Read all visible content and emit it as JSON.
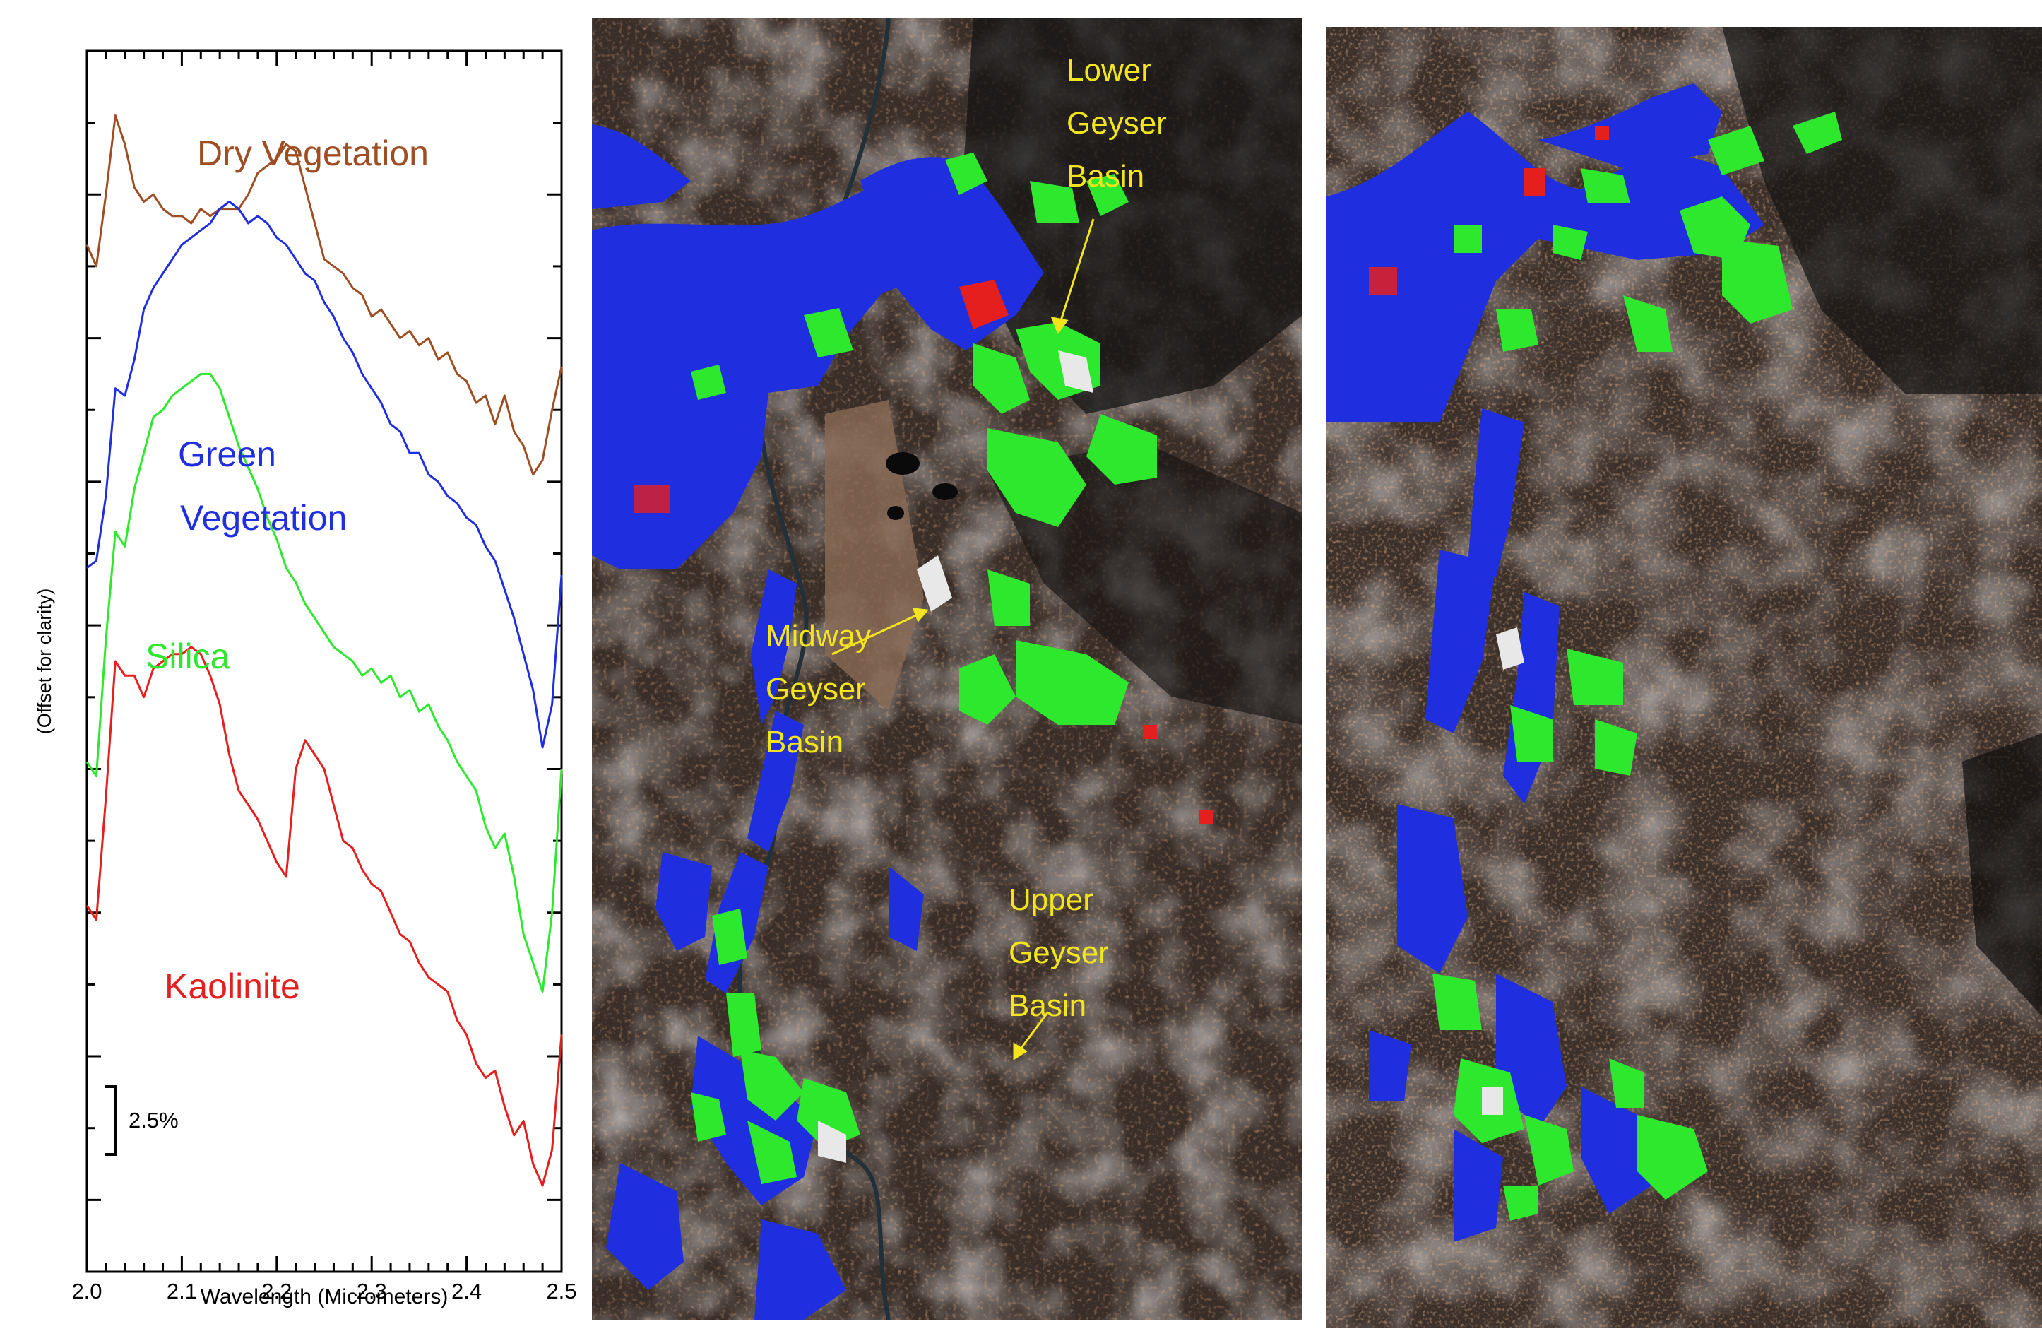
{
  "chart_data": {
    "type": "line",
    "xlabel": "Wavelength (Micrometers)",
    "ylabel": "(Offset for clarity)",
    "xlim": [
      2.0,
      2.5
    ],
    "xticks": [
      "2.0",
      "2.1",
      "2.2",
      "2.3",
      "2.4",
      "2.5"
    ],
    "scale_bar": "2.5%",
    "series": [
      {
        "name": "Dry Vegetation",
        "color": "#9e4e22",
        "x": [
          2.0,
          2.01,
          2.02,
          2.03,
          2.04,
          2.05,
          2.06,
          2.07,
          2.08,
          2.09,
          2.1,
          2.11,
          2.12,
          2.13,
          2.14,
          2.15,
          2.16,
          2.17,
          2.18,
          2.19,
          2.2,
          2.21,
          2.22,
          2.23,
          2.24,
          2.25,
          2.26,
          2.27,
          2.28,
          2.29,
          2.3,
          2.31,
          2.32,
          2.33,
          2.34,
          2.35,
          2.36,
          2.37,
          2.38,
          2.39,
          2.4,
          2.41,
          2.42,
          2.43,
          2.44,
          2.45,
          2.46,
          2.47,
          2.48,
          2.49,
          2.5
        ],
        "y": [
          4.8,
          4.5,
          5.5,
          6.6,
          6.2,
          5.6,
          5.4,
          5.5,
          5.3,
          5.2,
          5.2,
          5.1,
          5.3,
          5.2,
          5.3,
          5.3,
          5.3,
          5.5,
          5.8,
          5.9,
          6.0,
          6.2,
          6.1,
          5.6,
          5.1,
          4.6,
          4.5,
          4.4,
          4.2,
          4.1,
          3.8,
          3.9,
          3.7,
          3.5,
          3.6,
          3.4,
          3.5,
          3.2,
          3.3,
          3.0,
          2.9,
          2.6,
          2.7,
          2.3,
          2.7,
          2.2,
          2.0,
          1.6,
          1.8,
          2.5,
          3.1
        ]
      },
      {
        "name": "Green Vegetation",
        "color": "#1f2fe0",
        "x": [
          2.0,
          2.01,
          2.02,
          2.03,
          2.04,
          2.05,
          2.06,
          2.07,
          2.08,
          2.09,
          2.1,
          2.11,
          2.12,
          2.13,
          2.14,
          2.15,
          2.16,
          2.17,
          2.18,
          2.19,
          2.2,
          2.21,
          2.22,
          2.23,
          2.24,
          2.25,
          2.26,
          2.27,
          2.28,
          2.29,
          2.3,
          2.31,
          2.32,
          2.33,
          2.34,
          2.35,
          2.36,
          2.37,
          2.38,
          2.39,
          2.4,
          2.41,
          2.42,
          2.43,
          2.44,
          2.45,
          2.46,
          2.47,
          2.48,
          2.49,
          2.5
        ],
        "y": [
          0.3,
          0.4,
          1.3,
          2.8,
          2.7,
          3.2,
          3.9,
          4.2,
          4.4,
          4.6,
          4.8,
          4.9,
          5.0,
          5.1,
          5.3,
          5.4,
          5.3,
          5.1,
          5.2,
          5.1,
          4.9,
          4.8,
          4.6,
          4.4,
          4.3,
          4.0,
          3.8,
          3.5,
          3.3,
          3.0,
          2.8,
          2.6,
          2.3,
          2.2,
          1.9,
          1.9,
          1.6,
          1.5,
          1.3,
          1.2,
          1.0,
          0.9,
          0.6,
          0.4,
          0.0,
          -0.4,
          -0.9,
          -1.4,
          -2.2,
          -1.6,
          0.2
        ]
      },
      {
        "name": "Silica",
        "color": "#2ee82e",
        "x": [
          2.0,
          2.01,
          2.02,
          2.03,
          2.04,
          2.05,
          2.06,
          2.07,
          2.08,
          2.09,
          2.1,
          2.11,
          2.12,
          2.13,
          2.14,
          2.15,
          2.16,
          2.17,
          2.18,
          2.19,
          2.2,
          2.21,
          2.22,
          2.23,
          2.24,
          2.25,
          2.26,
          2.27,
          2.28,
          2.29,
          2.3,
          2.31,
          2.32,
          2.33,
          2.34,
          2.35,
          2.36,
          2.37,
          2.38,
          2.39,
          2.4,
          2.41,
          2.42,
          2.43,
          2.44,
          2.45,
          2.46,
          2.47,
          2.48,
          2.49,
          2.5
        ],
        "y": [
          -2.4,
          -2.6,
          -0.7,
          0.8,
          0.6,
          1.4,
          1.9,
          2.4,
          2.5,
          2.7,
          2.8,
          2.9,
          3.0,
          3.0,
          2.8,
          2.4,
          2.0,
          1.7,
          1.4,
          1.0,
          0.7,
          0.3,
          0.1,
          -0.2,
          -0.4,
          -0.6,
          -0.8,
          -0.9,
          -1.0,
          -1.2,
          -1.1,
          -1.3,
          -1.2,
          -1.5,
          -1.4,
          -1.7,
          -1.6,
          -1.9,
          -2.1,
          -2.4,
          -2.6,
          -2.8,
          -3.3,
          -3.6,
          -3.4,
          -4.0,
          -4.8,
          -5.2,
          -5.6,
          -4.5,
          -2.5
        ]
      },
      {
        "name": "Kaolinite",
        "color": "#e51e1e",
        "x": [
          2.0,
          2.01,
          2.02,
          2.03,
          2.04,
          2.05,
          2.06,
          2.07,
          2.08,
          2.09,
          2.1,
          2.11,
          2.12,
          2.13,
          2.14,
          2.15,
          2.16,
          2.17,
          2.18,
          2.19,
          2.2,
          2.21,
          2.22,
          2.23,
          2.24,
          2.25,
          2.26,
          2.27,
          2.28,
          2.29,
          2.3,
          2.31,
          2.32,
          2.33,
          2.34,
          2.35,
          2.36,
          2.37,
          2.38,
          2.39,
          2.4,
          2.41,
          2.42,
          2.43,
          2.44,
          2.45,
          2.46,
          2.47,
          2.48,
          2.49,
          2.5
        ],
        "y": [
          -4.4,
          -4.6,
          -2.9,
          -1.0,
          -1.2,
          -1.2,
          -1.5,
          -1.1,
          -1.0,
          -0.9,
          -0.9,
          -0.8,
          -0.9,
          -1.2,
          -1.6,
          -2.3,
          -2.8,
          -3.0,
          -3.2,
          -3.5,
          -3.8,
          -4.0,
          -2.5,
          -2.1,
          -2.3,
          -2.5,
          -3.0,
          -3.5,
          -3.6,
          -3.9,
          -4.1,
          -4.2,
          -4.5,
          -4.8,
          -4.9,
          -5.2,
          -5.4,
          -5.5,
          -5.6,
          -6.0,
          -6.2,
          -6.6,
          -6.8,
          -6.7,
          -7.2,
          -7.6,
          -7.4,
          -8.0,
          -8.3,
          -7.8,
          -6.2
        ]
      }
    ]
  },
  "maps": {
    "labels": {
      "lower": [
        "Lower",
        "Geyser",
        "Basin"
      ],
      "midway": [
        "Midway",
        "Geyser",
        "Basin"
      ],
      "upper": [
        "Upper",
        "Geyser",
        "Basin"
      ]
    },
    "colors": {
      "silica": "#2ee82e",
      "vegetation": "#1f2fe0",
      "kaolinite": "#e51e1e",
      "label": "#f2e51b"
    }
  }
}
